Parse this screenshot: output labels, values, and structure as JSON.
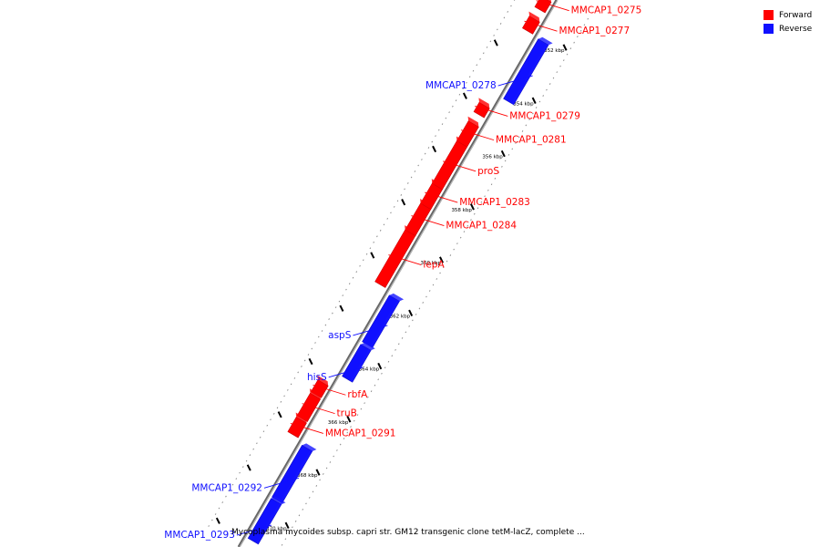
{
  "legend": {
    "forward_label": "Forward",
    "reverse_label": "Reverse",
    "forward_color": "#ff0000",
    "reverse_color": "#1010ff"
  },
  "caption": "Mycoplasma mycoides subsp. capri str. GM12 transgenic clone tetM-lacZ, complete ...",
  "axis": {
    "unit": "kbp",
    "ticks": [
      {
        "kbp": 352,
        "label": "352 kbp"
      },
      {
        "kbp": 354,
        "label": "354 kbp"
      },
      {
        "kbp": 356,
        "label": "356 kbp"
      },
      {
        "kbp": 358,
        "label": "358 kbp"
      },
      {
        "kbp": 360,
        "label": "360 kbp"
      },
      {
        "kbp": 362,
        "label": "362 kbp"
      },
      {
        "kbp": 364,
        "label": "364 kbp"
      },
      {
        "kbp": 366,
        "label": "366 kbp"
      },
      {
        "kbp": 368,
        "label": "368 kbp"
      },
      {
        "kbp": 370,
        "label": "370 kbp"
      }
    ]
  },
  "genes": [
    {
      "name": "MMCAP1_0275",
      "strand": "forward",
      "start_kbp": 350.95,
      "end_kbp": 351.35
    },
    {
      "name": "MMCAP1_0277",
      "strand": "forward",
      "start_kbp": 351.7,
      "end_kbp": 352.15
    },
    {
      "name": "MMCAP1_0278",
      "strand": "reverse",
      "start_kbp": 352.2,
      "end_kbp": 354.45
    },
    {
      "name": "MMCAP1_0279",
      "strand": "forward",
      "start_kbp": 354.95,
      "end_kbp": 355.3
    },
    {
      "name": "MMCAP1_0281",
      "strand": "forward",
      "start_kbp": 355.65,
      "end_kbp": 356.4
    },
    {
      "name": "proS",
      "strand": "forward",
      "start_kbp": 356.4,
      "end_kbp": 358.0
    },
    {
      "name": "MMCAP1_0283",
      "strand": "forward",
      "start_kbp": 358.0,
      "end_kbp": 358.75
    },
    {
      "name": "MMCAP1_0284",
      "strand": "forward",
      "start_kbp": 358.75,
      "end_kbp": 359.75
    },
    {
      "name": "lepA",
      "strand": "forward",
      "start_kbp": 359.75,
      "end_kbp": 361.7
    },
    {
      "name": "aspS",
      "strand": "reverse",
      "start_kbp": 361.85,
      "end_kbp": 363.6
    },
    {
      "name": "hisS",
      "strand": "reverse",
      "start_kbp": 363.7,
      "end_kbp": 364.9
    },
    {
      "name": "rbfA",
      "strand": "forward",
      "start_kbp": 365.4,
      "end_kbp": 365.85
    },
    {
      "name": "truB",
      "strand": "forward",
      "start_kbp": 365.9,
      "end_kbp": 366.75
    },
    {
      "name": "MMCAP1_0291",
      "strand": "forward",
      "start_kbp": 366.8,
      "end_kbp": 367.35
    },
    {
      "name": "MMCAP1_0292",
      "strand": "reverse",
      "start_kbp": 367.5,
      "end_kbp": 369.45
    },
    {
      "name": "MMCAP1_0293",
      "strand": "reverse",
      "start_kbp": 369.5,
      "end_kbp": 371.0
    }
  ]
}
